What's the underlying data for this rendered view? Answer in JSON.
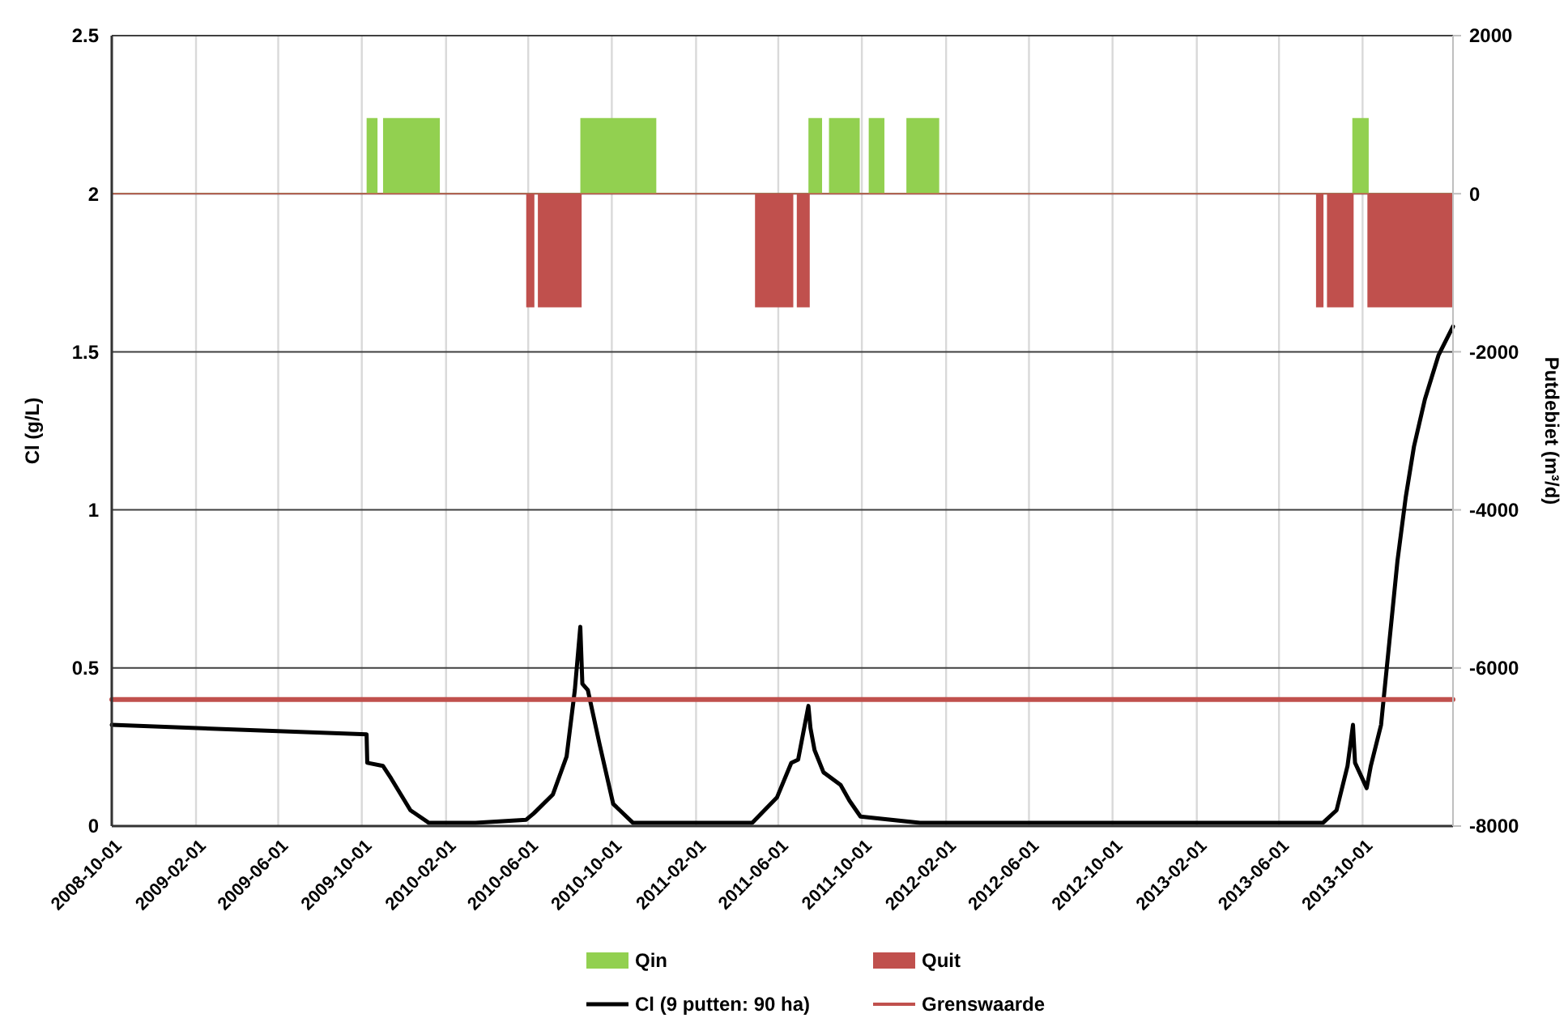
{
  "chart_data": {
    "type": "line",
    "ylabel": "Cl (g/L)",
    "y2label": "Putdebiet (m³/d)",
    "xlim": [
      "2008-10-01",
      "2014-02-10"
    ],
    "xticks": [
      "2008-10-01",
      "2009-02-01",
      "2009-06-01",
      "2009-10-01",
      "2010-02-01",
      "2010-06-01",
      "2010-10-01",
      "2011-02-01",
      "2011-06-01",
      "2011-10-01",
      "2012-02-01",
      "2012-06-01",
      "2012-10-01",
      "2013-02-01",
      "2013-06-01",
      "2013-10-01"
    ],
    "ylim": [
      0,
      2.5
    ],
    "yticks": [
      0,
      0.5,
      1,
      1.5,
      2,
      2.5
    ],
    "y2lim": [
      -8000,
      2000
    ],
    "y2ticks": [
      -8000,
      -6000,
      -4000,
      -2000,
      0,
      2000
    ],
    "grid": true,
    "legend": "bottom",
    "series": [
      {
        "name": "Qin",
        "type": "area",
        "axis": "y2",
        "color": "#92d050",
        "x": [
          "2008-10-01",
          "2009-10-09",
          "2009-10-09",
          "2009-10-23",
          "2009-10-23",
          "2009-11-02",
          "2009-11-02",
          "2010-01-22",
          "2010-01-22",
          "2010-08-17",
          "2010-08-17",
          "2010-12-04",
          "2010-12-04",
          "2011-07-16",
          "2011-07-16",
          "2011-08-03",
          "2011-08-03",
          "2011-08-15",
          "2011-08-15",
          "2011-09-27",
          "2011-09-27",
          "2011-10-12",
          "2011-10-12",
          "2011-11-02",
          "2011-11-02",
          "2011-12-06",
          "2011-12-06",
          "2012-01-21",
          "2012-01-21",
          "2013-09-17",
          "2013-09-17",
          "2013-10-09",
          "2013-10-09",
          "2014-02-10"
        ],
        "values": [
          0,
          0,
          950,
          950,
          0,
          0,
          950,
          950,
          0,
          0,
          950,
          950,
          0,
          0,
          950,
          950,
          0,
          0,
          950,
          950,
          0,
          0,
          950,
          950,
          0,
          0,
          950,
          950,
          0,
          0,
          950,
          950,
          0,
          0
        ]
      },
      {
        "name": "Quit",
        "type": "area",
        "axis": "y2",
        "color": "#c0504d",
        "x": [
          "2008-10-01",
          "2010-05-30",
          "2010-05-30",
          "2010-06-09",
          "2010-06-09",
          "2010-06-16",
          "2010-06-16",
          "2010-08-17",
          "2010-08-17",
          "2011-04-29",
          "2011-04-29",
          "2011-06-22",
          "2011-06-22",
          "2011-06-29",
          "2011-06-29",
          "2011-07-16",
          "2011-07-16",
          "2013-07-26",
          "2013-07-26",
          "2013-08-04",
          "2013-08-04",
          "2013-08-11",
          "2013-08-11",
          "2013-09-17",
          "2013-09-17",
          "2013-10-09",
          "2013-10-09",
          "2014-02-10",
          "2014-02-10"
        ],
        "values": [
          0,
          0,
          -1430,
          -1430,
          0,
          0,
          -1430,
          -1430,
          0,
          0,
          -1430,
          -1430,
          0,
          0,
          -1430,
          -1430,
          0,
          0,
          -1430,
          -1430,
          0,
          0,
          -1430,
          -1430,
          0,
          0,
          -1430,
          -1430,
          0
        ]
      },
      {
        "name": "Cl (9 putten: 90 ha)",
        "color": "#000000",
        "x": [
          "2008-10-01",
          "2009-10-08",
          "2009-10-09",
          "2009-11-01",
          "2009-11-13",
          "2009-12-11",
          "2010-01-07",
          "2010-03-16",
          "2010-05-29",
          "2010-06-09",
          "2010-07-07",
          "2010-07-27",
          "2010-08-08",
          "2010-08-16",
          "2010-08-19",
          "2010-08-27",
          "2010-09-13",
          "2010-10-03",
          "2010-11-01",
          "2011-04-24",
          "2011-05-30",
          "2011-06-20",
          "2011-06-30",
          "2011-07-15",
          "2011-07-18",
          "2011-07-24",
          "2011-08-06",
          "2011-08-31",
          "2011-09-13",
          "2011-09-29",
          "2011-12-25",
          "2012-06-01",
          "2013-06-01",
          "2013-08-04",
          "2013-08-24",
          "2013-09-09",
          "2013-09-17",
          "2013-09-20",
          "2013-10-07",
          "2013-10-13",
          "2013-10-28",
          "2013-11-09",
          "2013-11-21",
          "2013-12-03",
          "2013-12-15",
          "2013-12-31",
          "2014-01-20",
          "2014-02-10"
        ],
        "values": [
          0.32,
          0.29,
          0.2,
          0.19,
          0.15,
          0.05,
          0.01,
          0.01,
          0.02,
          0.04,
          0.1,
          0.22,
          0.43,
          0.63,
          0.45,
          0.43,
          0.26,
          0.07,
          0.01,
          0.01,
          0.09,
          0.2,
          0.21,
          0.38,
          0.31,
          0.24,
          0.17,
          0.13,
          0.08,
          0.03,
          0.01,
          0.01,
          0.01,
          0.01,
          0.05,
          0.19,
          0.32,
          0.2,
          0.12,
          0.19,
          0.32,
          0.58,
          0.84,
          1.04,
          1.2,
          1.35,
          1.49,
          1.58
        ]
      },
      {
        "name": "Grenswaarde",
        "color": "#c0504d",
        "x": [
          "2008-10-01",
          "2014-02-10"
        ],
        "values": [
          0.4,
          0.4
        ]
      }
    ]
  }
}
